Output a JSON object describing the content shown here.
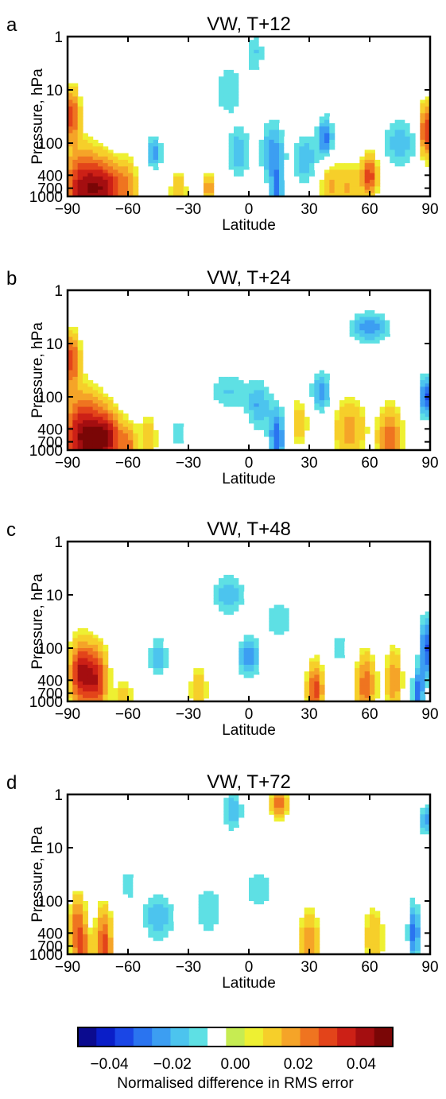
{
  "figure": {
    "panels": [
      {
        "letter": "a",
        "title": "VW, T+12"
      },
      {
        "letter": "b",
        "title": "VW, T+24"
      },
      {
        "letter": "c",
        "title": "VW, T+48"
      },
      {
        "letter": "d",
        "title": "VW, T+72"
      }
    ],
    "colorbar": {
      "label": "Normalised difference in RMS error",
      "ticks": [
        "−0.04",
        "−0.02",
        "0.00",
        "0.02",
        "0.04"
      ],
      "tick_values": [
        -0.04,
        -0.02,
        0.0,
        0.02,
        0.04
      ],
      "range": [
        -0.05,
        0.05
      ],
      "colors": [
        "#0b0b8f",
        "#0a1ec8",
        "#1a46e6",
        "#2a74f0",
        "#3c9ef2",
        "#4cc4ee",
        "#5ee0e4",
        "#ffffff",
        "#c6ec52",
        "#eef032",
        "#f6cf2a",
        "#f5a428",
        "#ef7420",
        "#e3441a",
        "#cc2016",
        "#a40e10",
        "#7a0606"
      ]
    }
  },
  "chart_data": [
    {
      "type": "heatmap",
      "title": "VW, T+12",
      "xlabel": "Latitude",
      "ylabel": "Pressure, hPa",
      "x_ticks": [
        -90,
        -60,
        -30,
        0,
        30,
        60,
        90
      ],
      "x_tick_labels": [
        "−90",
        "−60",
        "−30",
        "0",
        "30",
        "60",
        "90"
      ],
      "y_ticks": [
        1,
        10,
        100,
        400,
        700,
        1000
      ],
      "y_tick_labels": [
        "1",
        "10",
        "100",
        "400",
        "700",
        "1000"
      ],
      "xlim": [
        -90,
        90
      ],
      "ylim": [
        1000,
        1
      ],
      "y_scale": "log",
      "color_range": [
        -0.05,
        0.05
      ],
      "features": [
        {
          "lat": -82,
          "p": 700,
          "value": 0.04,
          "wlat": 10,
          "wlogp": 0.7
        },
        {
          "lat": -88,
          "p": 30,
          "value": 0.03,
          "wlat": 4,
          "wlogp": 0.5
        },
        {
          "lat": -70,
          "p": 700,
          "value": 0.03,
          "wlat": 8,
          "wlogp": 0.5
        },
        {
          "lat": -60,
          "p": 600,
          "value": 0.015,
          "wlat": 5,
          "wlogp": 0.5
        },
        {
          "lat": -47,
          "p": 150,
          "value": -0.025,
          "wlat": 4,
          "wlogp": 0.3
        },
        {
          "lat": -35,
          "p": 800,
          "value": 0.015,
          "wlat": 4,
          "wlogp": 0.4
        },
        {
          "lat": -20,
          "p": 700,
          "value": 0.02,
          "wlat": 3,
          "wlogp": 0.3
        },
        {
          "lat": -5,
          "p": 150,
          "value": -0.02,
          "wlat": 6,
          "wlogp": 0.5
        },
        {
          "lat": 3,
          "p": 2,
          "value": -0.015,
          "wlat": 5,
          "wlogp": 0.4
        },
        {
          "lat": 12,
          "p": 150,
          "value": -0.025,
          "wlat": 6,
          "wlogp": 0.6
        },
        {
          "lat": 14,
          "p": 800,
          "value": -0.025,
          "wlat": 3,
          "wlogp": 0.4
        },
        {
          "lat": 28,
          "p": 200,
          "value": -0.02,
          "wlat": 6,
          "wlogp": 0.5
        },
        {
          "lat": 38,
          "p": 80,
          "value": -0.03,
          "wlat": 4,
          "wlogp": 0.4
        },
        {
          "lat": 40,
          "p": 600,
          "value": 0.015,
          "wlat": 5,
          "wlogp": 0.5
        },
        {
          "lat": 60,
          "p": 400,
          "value": 0.03,
          "wlat": 4,
          "wlogp": 0.4
        },
        {
          "lat": 75,
          "p": 100,
          "value": -0.02,
          "wlat": 8,
          "wlogp": 0.5
        },
        {
          "lat": 88,
          "p": 60,
          "value": 0.035,
          "wlat": 3,
          "wlogp": 0.5
        },
        {
          "lat": 50,
          "p": 700,
          "value": 0.015,
          "wlat": 6,
          "wlogp": 0.5
        },
        {
          "lat": -10,
          "p": 10,
          "value": -0.015,
          "wlat": 8,
          "wlogp": 0.5
        }
      ]
    },
    {
      "type": "heatmap",
      "title": "VW, T+24",
      "xlabel": "Latitude",
      "ylabel": "Pressure, hPa",
      "x_ticks": [
        -90,
        -60,
        -30,
        0,
        30,
        60,
        90
      ],
      "x_tick_labels": [
        "−90",
        "−60",
        "−30",
        "0",
        "30",
        "60",
        "90"
      ],
      "y_ticks": [
        1,
        10,
        100,
        400,
        700,
        1000
      ],
      "y_tick_labels": [
        "1",
        "10",
        "100",
        "400",
        "700",
        "1000"
      ],
      "xlim": [
        -90,
        90
      ],
      "ylim": [
        1000,
        1
      ],
      "y_scale": "log",
      "color_range": [
        -0.05,
        0.05
      ],
      "features": [
        {
          "lat": -82,
          "p": 600,
          "value": 0.045,
          "wlat": 10,
          "wlogp": 0.8
        },
        {
          "lat": -88,
          "p": 20,
          "value": 0.03,
          "wlat": 4,
          "wlogp": 0.5
        },
        {
          "lat": -70,
          "p": 600,
          "value": 0.035,
          "wlat": 7,
          "wlogp": 0.5
        },
        {
          "lat": -60,
          "p": 800,
          "value": 0.02,
          "wlat": 4,
          "wlogp": 0.4
        },
        {
          "lat": -50,
          "p": 600,
          "value": 0.012,
          "wlat": 5,
          "wlogp": 0.5
        },
        {
          "lat": -10,
          "p": 80,
          "value": -0.015,
          "wlat": 10,
          "wlogp": 0.4
        },
        {
          "lat": 5,
          "p": 150,
          "value": -0.02,
          "wlat": 6,
          "wlogp": 0.5
        },
        {
          "lat": 14,
          "p": 600,
          "value": -0.03,
          "wlat": 4,
          "wlogp": 0.6
        },
        {
          "lat": 36,
          "p": 80,
          "value": -0.025,
          "wlat": 5,
          "wlogp": 0.4
        },
        {
          "lat": 60,
          "p": 5,
          "value": -0.025,
          "wlat": 10,
          "wlogp": 0.3
        },
        {
          "lat": 88,
          "p": 100,
          "value": -0.035,
          "wlat": 3,
          "wlogp": 0.4
        },
        {
          "lat": 70,
          "p": 600,
          "value": 0.025,
          "wlat": 6,
          "wlogp": 0.6
        },
        {
          "lat": 50,
          "p": 400,
          "value": 0.018,
          "wlat": 8,
          "wlogp": 0.6
        },
        {
          "lat": -35,
          "p": 500,
          "value": -0.012,
          "wlat": 5,
          "wlogp": 0.4
        },
        {
          "lat": 25,
          "p": 300,
          "value": 0.012,
          "wlat": 5,
          "wlogp": 0.5
        }
      ]
    },
    {
      "type": "heatmap",
      "title": "VW, T+48",
      "xlabel": "Latitude",
      "ylabel": "Pressure, hPa",
      "x_ticks": [
        -90,
        -60,
        -30,
        0,
        30,
        60,
        90
      ],
      "x_tick_labels": [
        "−90",
        "−60",
        "−30",
        "0",
        "30",
        "60",
        "90"
      ],
      "y_ticks": [
        1,
        10,
        100,
        400,
        700,
        1000
      ],
      "y_tick_labels": [
        "1",
        "10",
        "100",
        "400",
        "700",
        "1000"
      ],
      "xlim": [
        -90,
        90
      ],
      "ylim": [
        1000,
        1
      ],
      "y_scale": "log",
      "color_range": [
        -0.05,
        0.05
      ],
      "features": [
        {
          "lat": -83,
          "p": 300,
          "value": 0.04,
          "wlat": 6,
          "wlogp": 0.6
        },
        {
          "lat": -75,
          "p": 400,
          "value": 0.03,
          "wlat": 5,
          "wlogp": 0.6
        },
        {
          "lat": -62,
          "p": 900,
          "value": 0.012,
          "wlat": 5,
          "wlogp": 0.4
        },
        {
          "lat": -45,
          "p": 150,
          "value": -0.02,
          "wlat": 5,
          "wlogp": 0.4
        },
        {
          "lat": -10,
          "p": 10,
          "value": -0.02,
          "wlat": 8,
          "wlogp": 0.4
        },
        {
          "lat": 0,
          "p": 150,
          "value": -0.025,
          "wlat": 6,
          "wlogp": 0.4
        },
        {
          "lat": 33,
          "p": 600,
          "value": 0.03,
          "wlat": 4,
          "wlogp": 0.5
        },
        {
          "lat": 58,
          "p": 500,
          "value": 0.025,
          "wlat": 5,
          "wlogp": 0.6
        },
        {
          "lat": 72,
          "p": 400,
          "value": 0.02,
          "wlat": 4,
          "wlogp": 0.6
        },
        {
          "lat": 88,
          "p": 100,
          "value": -0.035,
          "wlat": 3,
          "wlogp": 0.6
        },
        {
          "lat": 84,
          "p": 700,
          "value": -0.03,
          "wlat": 3,
          "wlogp": 0.5
        },
        {
          "lat": 15,
          "p": 30,
          "value": -0.015,
          "wlat": 8,
          "wlogp": 0.4
        },
        {
          "lat": -25,
          "p": 600,
          "value": 0.012,
          "wlat": 5,
          "wlogp": 0.5
        },
        {
          "lat": 45,
          "p": 100,
          "value": -0.012,
          "wlat": 5,
          "wlogp": 0.4
        }
      ]
    },
    {
      "type": "heatmap",
      "title": "VW, T+72",
      "xlabel": "Latitude",
      "ylabel": "Pressure, hPa",
      "x_ticks": [
        -90,
        -60,
        -30,
        0,
        30,
        60,
        90
      ],
      "x_tick_labels": [
        "−90",
        "−60",
        "−30",
        "0",
        "30",
        "60",
        "90"
      ],
      "y_ticks": [
        1,
        10,
        100,
        400,
        700,
        1000
      ],
      "y_tick_labels": [
        "1",
        "10",
        "100",
        "400",
        "700",
        "1000"
      ],
      "xlim": [
        -90,
        90
      ],
      "ylim": [
        1000,
        1
      ],
      "y_scale": "log",
      "color_range": [
        -0.05,
        0.05
      ],
      "features": [
        {
          "lat": -85,
          "p": 300,
          "value": 0.025,
          "wlat": 4,
          "wlogp": 0.6
        },
        {
          "lat": -72,
          "p": 700,
          "value": 0.03,
          "wlat": 4,
          "wlogp": 0.7
        },
        {
          "lat": -82,
          "p": 900,
          "value": 0.02,
          "wlat": 4,
          "wlogp": 0.4
        },
        {
          "lat": -45,
          "p": 200,
          "value": -0.02,
          "wlat": 8,
          "wlogp": 0.5
        },
        {
          "lat": -20,
          "p": 150,
          "value": -0.015,
          "wlat": 8,
          "wlogp": 0.5
        },
        {
          "lat": -8,
          "p": 2,
          "value": -0.02,
          "wlat": 5,
          "wlogp": 0.4
        },
        {
          "lat": 15,
          "p": 1.5,
          "value": 0.025,
          "wlat": 4,
          "wlogp": 0.3
        },
        {
          "lat": 5,
          "p": 60,
          "value": -0.015,
          "wlat": 8,
          "wlogp": 0.4
        },
        {
          "lat": 30,
          "p": 600,
          "value": 0.02,
          "wlat": 5,
          "wlogp": 0.6
        },
        {
          "lat": 62,
          "p": 500,
          "value": 0.015,
          "wlat": 5,
          "wlogp": 0.6
        },
        {
          "lat": 82,
          "p": 400,
          "value": -0.03,
          "wlat": 3,
          "wlogp": 0.6
        },
        {
          "lat": 88,
          "p": 3,
          "value": -0.025,
          "wlat": 3,
          "wlogp": 0.3
        },
        {
          "lat": -60,
          "p": 50,
          "value": -0.012,
          "wlat": 5,
          "wlogp": 0.4
        }
      ]
    }
  ]
}
